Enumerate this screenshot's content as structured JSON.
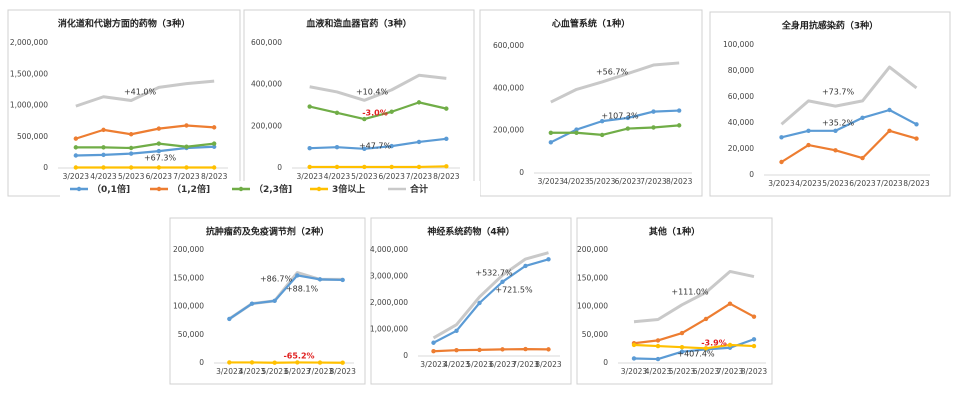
{
  "chart_data": [
    {
      "type": "line",
      "title": "消化道和代谢方面的药物（3种）",
      "categories": [
        "3/2023",
        "4/2023",
        "5/2023",
        "6/2023",
        "7/2023",
        "8/2023"
      ],
      "ylim": [
        0,
        2000000
      ],
      "yticks": [
        0,
        {
          "value": 500000,
          "label": "500,000"
        },
        {
          "value": 1000000,
          "label": "1,000,000"
        },
        {
          "value": 1500000,
          "label": "1,500,000"
        },
        {
          "value": 2000000,
          "label": "2,000,000"
        }
      ],
      "series": [
        {
          "name": "（0,1倍]",
          "color": "#5b9bd5",
          "values": [
            200000,
            210000,
            230000,
            270000,
            320000,
            340000
          ]
        },
        {
          "name": "（1,2倍]",
          "color": "#ed7d31",
          "values": [
            470000,
            610000,
            540000,
            630000,
            680000,
            650000
          ]
        },
        {
          "name": "（2,3倍]",
          "color": "#70ad47",
          "values": [
            330000,
            330000,
            320000,
            390000,
            340000,
            390000
          ]
        },
        {
          "name": "3倍以上",
          "color": "#ffc000",
          "values": [
            8000,
            8000,
            8000,
            8000,
            8000,
            8000
          ]
        },
        {
          "name": "合计",
          "color": "#c9c9c9",
          "values": [
            990000,
            1140000,
            1080000,
            1290000,
            1350000,
            1390000
          ]
        }
      ],
      "annotations": [
        {
          "text": "+41.0%",
          "color": "#333333"
        },
        {
          "text": "+67.3%",
          "color": "#333333"
        }
      ]
    },
    {
      "type": "line",
      "title": "血液和造血器官药（3种）",
      "categories": [
        "3/2023",
        "4/2023",
        "5/2023",
        "6/2023",
        "7/2023",
        "8/2023"
      ],
      "ylim": [
        0,
        600000
      ],
      "yticks": [
        0,
        {
          "value": 200000,
          "label": "200,000"
        },
        {
          "value": 400000,
          "label": "400,000"
        },
        {
          "value": 600000,
          "label": "600,000"
        }
      ],
      "series": [
        {
          "name": "（0,1倍]",
          "color": "#5b9bd5",
          "values": [
            95000,
            100000,
            92000,
            105000,
            125000,
            140000
          ]
        },
        {
          "name": "（2,3倍]",
          "color": "#70ad47",
          "values": [
            295000,
            265000,
            235000,
            270000,
            315000,
            285000
          ]
        },
        {
          "name": "3倍以上",
          "color": "#ffc000",
          "values": [
            5000,
            5000,
            5000,
            5000,
            5000,
            8000
          ]
        },
        {
          "name": "合计",
          "color": "#c9c9c9",
          "values": [
            390000,
            365000,
            325000,
            375000,
            445000,
            430000
          ]
        }
      ],
      "annotations": [
        {
          "text": "+10.4%",
          "color": "#333333"
        },
        {
          "text": "-3.0%",
          "color": "#e02020"
        },
        {
          "text": "+47.7%",
          "color": "#333333"
        }
      ]
    },
    {
      "type": "line",
      "title": "心血管系统（1种）",
      "categories": [
        "3/2023",
        "4/2023",
        "5/2023",
        "6/2023",
        "7/2023",
        "8/2023"
      ],
      "ylim": [
        0,
        600000
      ],
      "yticks": [
        0,
        {
          "value": 200000,
          "label": "200,000"
        },
        {
          "value": 400000,
          "label": "400,000"
        },
        {
          "value": 600000,
          "label": "600,000"
        }
      ],
      "series": [
        {
          "name": "（0,1倍]",
          "color": "#5b9bd5",
          "values": [
            145000,
            205000,
            245000,
            260000,
            290000,
            295000
          ]
        },
        {
          "name": "（2,3倍]",
          "color": "#70ad47",
          "values": [
            190000,
            190000,
            180000,
            210000,
            215000,
            225000
          ]
        },
        {
          "name": "合计",
          "color": "#c9c9c9",
          "values": [
            335000,
            395000,
            430000,
            470000,
            510000,
            520000
          ]
        }
      ],
      "annotations": [
        {
          "text": "+56.7%",
          "color": "#333333"
        },
        {
          "text": "+107.3%",
          "color": "#333333"
        }
      ]
    },
    {
      "type": "line",
      "title": "全身用抗感染药（3种）",
      "categories": [
        "3/2023",
        "4/2023",
        "5/2023",
        "6/2023",
        "7/2023",
        "8/2023"
      ],
      "ylim": [
        0,
        100000
      ],
      "yticks": [
        0,
        {
          "value": 20000,
          "label": "20,000"
        },
        {
          "value": 40000,
          "label": "40,000"
        },
        {
          "value": 60000,
          "label": "60,000"
        },
        {
          "value": 80000,
          "label": "80,000"
        },
        {
          "value": 100000,
          "label": "100,000"
        }
      ],
      "series": [
        {
          "name": "（0,1倍]",
          "color": "#5b9bd5",
          "values": [
            29000,
            34000,
            34000,
            44000,
            50000,
            39000
          ]
        },
        {
          "name": "（1,2倍]",
          "color": "#ed7d31",
          "values": [
            10000,
            23000,
            19000,
            13000,
            34000,
            28000
          ]
        },
        {
          "name": "合计",
          "color": "#c9c9c9",
          "values": [
            39000,
            57000,
            53000,
            57000,
            83000,
            67000
          ]
        }
      ],
      "annotations": [
        {
          "text": "+73.7%",
          "color": "#333333"
        },
        {
          "text": "+35.2%",
          "color": "#333333"
        }
      ]
    },
    {
      "type": "line",
      "title": "抗肿瘤药及免疫调节剂（2种）",
      "categories": [
        "3/2023",
        "4/2023",
        "5/2023",
        "6/2023",
        "7/2023",
        "8/2023"
      ],
      "ylim": [
        0,
        200000
      ],
      "yticks": [
        0,
        {
          "value": 50000,
          "label": "50,000"
        },
        {
          "value": 100000,
          "label": "100,000"
        },
        {
          "value": 150000,
          "label": "150,000"
        },
        {
          "value": 200000,
          "label": "200,000"
        }
      ],
      "series": [
        {
          "name": "（0,1倍]",
          "color": "#5b9bd5",
          "values": [
            78000,
            105000,
            110000,
            155000,
            148000,
            147000
          ]
        },
        {
          "name": "3倍以上",
          "color": "#ffc000",
          "values": [
            1000,
            1000,
            500,
            1000,
            800,
            500
          ]
        },
        {
          "name": "合计",
          "color": "#c9c9c9",
          "values": [
            78000,
            105000,
            110000,
            160000,
            148000,
            148000
          ]
        }
      ],
      "annotations": [
        {
          "text": "+86.7%",
          "color": "#333333"
        },
        {
          "text": "+88.1%",
          "color": "#333333"
        },
        {
          "text": "-65.2%",
          "color": "#e02020"
        }
      ]
    },
    {
      "type": "line",
      "title": "神经系统药物（4种）",
      "categories": [
        "3/2023",
        "4/2023",
        "5/2023",
        "6/2023",
        "7/2023",
        "8/2023"
      ],
      "ylim": [
        0,
        4000000
      ],
      "yticks": [
        0,
        {
          "value": 1000000,
          "label": "1,000,000"
        },
        {
          "value": 2000000,
          "label": "2,000,000"
        },
        {
          "value": 3000000,
          "label": "3,000,000"
        },
        {
          "value": 4000000,
          "label": "4,000,000"
        }
      ],
      "series": [
        {
          "name": "（0,1倍]",
          "color": "#5b9bd5",
          "values": [
            500000,
            950000,
            2000000,
            2800000,
            3400000,
            3650000
          ]
        },
        {
          "name": "（1,2倍]",
          "color": "#ed7d31",
          "values": [
            180000,
            220000,
            230000,
            250000,
            260000,
            250000
          ]
        },
        {
          "name": "合计",
          "color": "#c9c9c9",
          "values": [
            680000,
            1180000,
            2230000,
            3050000,
            3660000,
            3900000
          ]
        }
      ],
      "annotations": [
        {
          "text": "+532.7%",
          "color": "#333333"
        },
        {
          "text": "+721.5%",
          "color": "#333333"
        }
      ]
    },
    {
      "type": "line",
      "title": "其他（1种）",
      "categories": [
        "3/2023",
        "4/2023",
        "5/2023",
        "6/2023",
        "7/2023",
        "8/2023"
      ],
      "ylim": [
        0,
        200000
      ],
      "yticks": [
        0,
        {
          "value": 50000,
          "label": "50,000"
        },
        {
          "value": 100000,
          "label": "100,000"
        },
        {
          "value": 150000,
          "label": "150,000"
        },
        {
          "value": 200000,
          "label": "200,000"
        }
      ],
      "series": [
        {
          "name": "（0,1倍]",
          "color": "#5b9bd5",
          "values": [
            8000,
            7000,
            20000,
            24000,
            27000,
            42000
          ]
        },
        {
          "name": "（1,2倍]",
          "color": "#ed7d31",
          "values": [
            35000,
            40000,
            53000,
            78000,
            105000,
            82000
          ]
        },
        {
          "name": "3倍以上",
          "color": "#ffc000",
          "values": [
            32000,
            30000,
            28000,
            26000,
            32000,
            30000
          ]
        },
        {
          "name": "合计",
          "color": "#c9c9c9",
          "values": [
            73000,
            77000,
            103000,
            125000,
            162000,
            153000
          ]
        }
      ],
      "annotations": [
        {
          "text": "+111.0%",
          "color": "#333333"
        },
        {
          "text": "-3.9%",
          "color": "#e02020"
        },
        {
          "text": "+407.4%",
          "color": "#333333"
        }
      ]
    }
  ]
}
